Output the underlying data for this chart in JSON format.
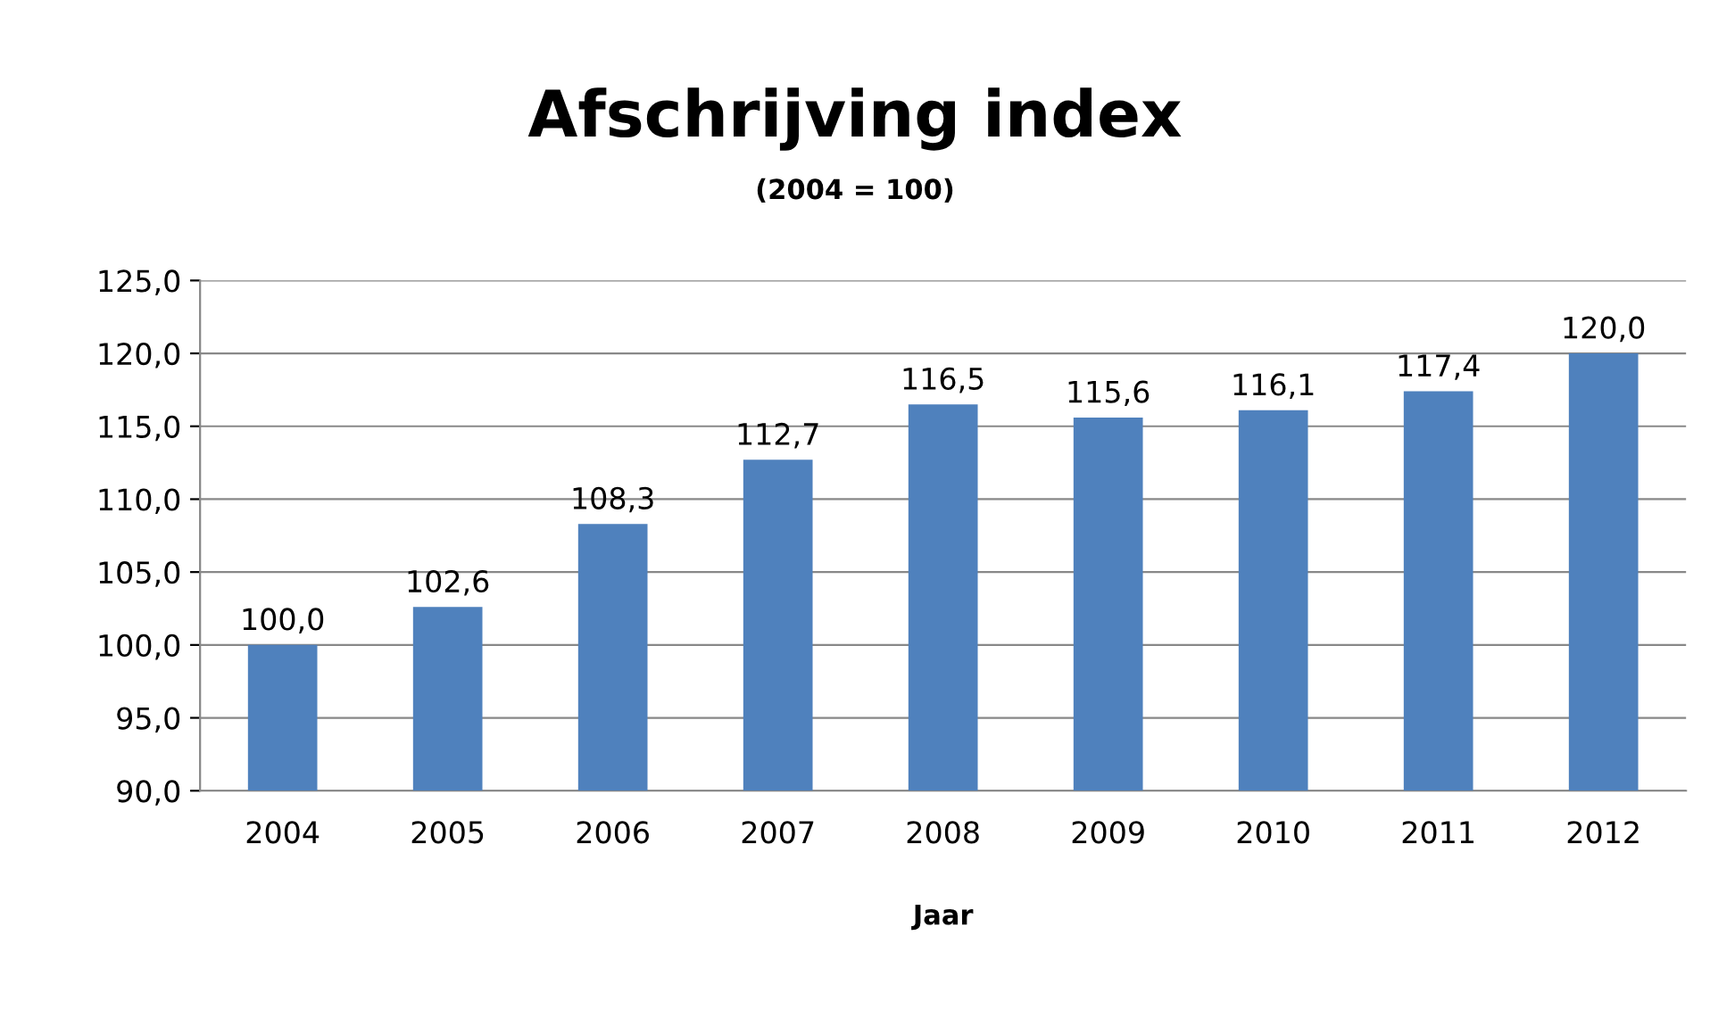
{
  "chart_data": {
    "type": "bar",
    "title": "Afschrijving index",
    "subtitle": "(2004 = 100)",
    "xlabel": "Jaar",
    "categories": [
      "2004",
      "2005",
      "2006",
      "2007",
      "2008",
      "2009",
      "2010",
      "2011",
      "2012"
    ],
    "values": [
      100.0,
      102.6,
      108.3,
      112.7,
      116.5,
      115.6,
      116.1,
      117.4,
      120.0
    ],
    "value_labels": [
      "100,0",
      "102,6",
      "108,3",
      "112,7",
      "116,5",
      "115,6",
      "116,1",
      "117,4",
      "120,0"
    ],
    "color": "#4f81bd",
    "ylim": [
      90,
      125
    ],
    "yticks": [
      {
        "value": 90,
        "label": "90,0"
      },
      {
        "value": 95,
        "label": "95,0"
      },
      {
        "value": 100,
        "label": "100,0"
      },
      {
        "value": 105,
        "label": "105,0"
      },
      {
        "value": 110,
        "label": "110,0"
      },
      {
        "value": 115,
        "label": "115,0"
      },
      {
        "value": 120,
        "label": "120,0"
      },
      {
        "value": 125,
        "label": "125,0"
      }
    ],
    "grid": "y",
    "legend": false
  }
}
